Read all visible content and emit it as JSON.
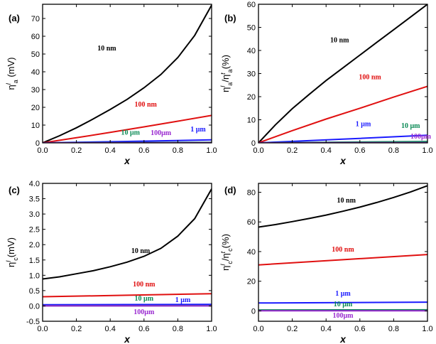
{
  "chart_data": [
    {
      "type": "line",
      "panel_label": "(a)",
      "ylabel_html": "η<tspan baseline-shift=\"super\" font-size=\"9\" font-style=\"italic\">l</tspan><tspan baseline-shift=\"sub\" font-size=\"9\">a</tspan> (mV)",
      "xlabel": "x",
      "xlim": [
        0,
        1.0
      ],
      "ylim": [
        0,
        78
      ],
      "xticks": [
        0.0,
        0.2,
        0.4,
        0.6,
        0.8,
        1.0
      ],
      "yticks": [
        0,
        10,
        20,
        30,
        40,
        50,
        60,
        70
      ],
      "series": [
        {
          "name": "10 nm",
          "color": "#000000",
          "x": [
            0,
            0.1,
            0.2,
            0.3,
            0.4,
            0.5,
            0.6,
            0.7,
            0.8,
            0.9,
            1.0
          ],
          "y": [
            0,
            4,
            8.5,
            13.5,
            18.8,
            24.5,
            31,
            38.5,
            48,
            60.5,
            77.5
          ]
        },
        {
          "name": "100 nm",
          "color": "#e01010",
          "x": [
            0,
            0.2,
            0.4,
            0.6,
            0.8,
            1.0
          ],
          "y": [
            0,
            2.9,
            5.9,
            9,
            12.2,
            15.5
          ]
        },
        {
          "name": "1 μm",
          "color": "#1a1aff",
          "x": [
            0,
            0.5,
            1.0
          ],
          "y": [
            0,
            0.8,
            1.7
          ]
        },
        {
          "name": "10 μm",
          "color": "#0a8a55",
          "x": [
            0,
            0.5,
            1.0
          ],
          "y": [
            0,
            0.15,
            0.3
          ]
        },
        {
          "name": "100μm",
          "color": "#9a2ad0",
          "x": [
            0,
            0.5,
            1.0
          ],
          "y": [
            0,
            0.03,
            0.06
          ]
        }
      ],
      "annotations": [
        {
          "text": "10 nm",
          "color": "#000000",
          "x": 0.38,
          "y": 52
        },
        {
          "text": "100 nm",
          "color": "#e01010",
          "x": 0.61,
          "y": 20.5
        },
        {
          "text": "10 μm",
          "color": "#0a8a55",
          "x": 0.52,
          "y": 4.7
        },
        {
          "text": "100μm",
          "color": "#9a2ad0",
          "x": 0.7,
          "y": 4.5
        },
        {
          "text": "1 μm",
          "color": "#1a1aff",
          "x": 0.92,
          "y": 6.4
        }
      ]
    },
    {
      "type": "line",
      "panel_label": "(b)",
      "ylabel_html": "η<tspan baseline-shift=\"super\" font-size=\"9\" font-style=\"italic\">l</tspan><tspan baseline-shift=\"sub\" font-size=\"9\">a</tspan>/η<tspan baseline-shift=\"super\" font-size=\"9\" font-style=\"italic\">t</tspan><tspan baseline-shift=\"sub\" font-size=\"9\">a</tspan>(%)",
      "xlabel": "x",
      "xlim": [
        0,
        1.0
      ],
      "ylim": [
        0,
        60
      ],
      "xticks": [
        0.0,
        0.2,
        0.4,
        0.6,
        0.8,
        1.0
      ],
      "yticks": [
        0,
        10,
        20,
        30,
        40,
        50,
        60
      ],
      "series": [
        {
          "name": "10 nm",
          "color": "#000000",
          "x": [
            0,
            0.1,
            0.2,
            0.3,
            0.4,
            0.5,
            0.6,
            0.7,
            0.8,
            0.9,
            1.0
          ],
          "y": [
            0,
            7.8,
            14.8,
            21,
            27,
            32.5,
            38,
            43.5,
            49,
            54.5,
            60
          ]
        },
        {
          "name": "100 nm",
          "color": "#e01010",
          "x": [
            0,
            0.2,
            0.4,
            0.6,
            0.8,
            1.0
          ],
          "y": [
            0,
            5.3,
            10.3,
            15,
            19.8,
            24.5
          ]
        },
        {
          "name": "1 μm",
          "color": "#1a1aff",
          "x": [
            0,
            0.5,
            1.0
          ],
          "y": [
            0,
            1.6,
            3.3
          ]
        },
        {
          "name": "10 μm",
          "color": "#0a8a55",
          "x": [
            0,
            0.5,
            1.0
          ],
          "y": [
            0,
            0.3,
            0.6
          ]
        },
        {
          "name": "100μm",
          "color": "#9a2ad0",
          "x": [
            0,
            0.5,
            1.0
          ],
          "y": [
            0,
            0.05,
            0.1
          ]
        }
      ],
      "annotations": [
        {
          "text": "10 nm",
          "color": "#000000",
          "x": 0.48,
          "y": 43.5
        },
        {
          "text": "100 nm",
          "color": "#e01010",
          "x": 0.66,
          "y": 27.5
        },
        {
          "text": "1 μm",
          "color": "#1a1aff",
          "x": 0.62,
          "y": 7.2
        },
        {
          "text": "10 μm",
          "color": "#0a8a55",
          "x": 0.9,
          "y": 6.5
        },
        {
          "text": "100μm",
          "color": "#9a2ad0",
          "x": 0.96,
          "y": 1.9
        }
      ]
    },
    {
      "type": "line",
      "panel_label": "(c)",
      "ylabel_html": "η<tspan baseline-shift=\"super\" font-size=\"9\" font-style=\"italic\">l</tspan><tspan baseline-shift=\"sub\" font-size=\"9\">c</tspan>(mV)",
      "xlabel": "x",
      "xlim": [
        0,
        1.0
      ],
      "ylim": [
        -0.5,
        4.0
      ],
      "xticks": [
        0.0,
        0.2,
        0.4,
        0.6,
        0.8,
        1.0
      ],
      "yticks": [
        -0.5,
        0.0,
        0.5,
        1.0,
        1.5,
        2.0,
        2.5,
        3.0,
        3.5,
        4.0
      ],
      "series": [
        {
          "name": "10 nm",
          "color": "#000000",
          "x": [
            0,
            0.1,
            0.2,
            0.3,
            0.4,
            0.5,
            0.6,
            0.7,
            0.8,
            0.9,
            1.0
          ],
          "y": [
            0.88,
            0.95,
            1.05,
            1.15,
            1.28,
            1.43,
            1.62,
            1.88,
            2.28,
            2.85,
            3.82
          ]
        },
        {
          "name": "100 nm",
          "color": "#e01010",
          "x": [
            0,
            0.5,
            1.0
          ],
          "y": [
            0.3,
            0.35,
            0.4
          ]
        },
        {
          "name": "1 μm",
          "color": "#1a1aff",
          "x": [
            0,
            0.5,
            1.0
          ],
          "y": [
            0.04,
            0.045,
            0.05
          ]
        },
        {
          "name": "10 μm",
          "color": "#0a8a55",
          "x": [
            0,
            0.5,
            1.0
          ],
          "y": [
            0.005,
            0.006,
            0.007
          ]
        },
        {
          "name": "100μm",
          "color": "#9a2ad0",
          "x": [
            0,
            0.5,
            1.0
          ],
          "y": [
            0.0,
            0.0,
            0.0
          ]
        }
      ],
      "annotations": [
        {
          "text": "10 nm",
          "color": "#000000",
          "x": 0.58,
          "y": 1.73
        },
        {
          "text": "100 nm",
          "color": "#e01010",
          "x": 0.6,
          "y": 0.64
        },
        {
          "text": "10 μm",
          "color": "#0a8a55",
          "x": 0.6,
          "y": 0.17
        },
        {
          "text": "1 μm",
          "color": "#1a1aff",
          "x": 0.83,
          "y": 0.13
        },
        {
          "text": "100μm",
          "color": "#9a2ad0",
          "x": 0.6,
          "y": -0.27
        }
      ]
    },
    {
      "type": "line",
      "panel_label": "(d)",
      "ylabel_html": "η<tspan baseline-shift=\"super\" font-size=\"9\" font-style=\"italic\">l</tspan><tspan baseline-shift=\"sub\" font-size=\"9\">c</tspan>/η<tspan baseline-shift=\"super\" font-size=\"9\" font-style=\"italic\">t</tspan><tspan baseline-shift=\"sub\" font-size=\"9\">c</tspan>(%)",
      "xlabel": "x",
      "xlim": [
        0,
        1.0
      ],
      "ylim": [
        -7,
        86
      ],
      "xticks": [
        0.0,
        0.2,
        0.4,
        0.6,
        0.8,
        1.0
      ],
      "yticks": [
        0,
        20,
        40,
        60,
        80
      ],
      "series": [
        {
          "name": "10 nm",
          "color": "#000000",
          "x": [
            0,
            0.1,
            0.2,
            0.3,
            0.4,
            0.5,
            0.6,
            0.7,
            0.8,
            0.9,
            1.0
          ],
          "y": [
            56.5,
            58.2,
            60.2,
            62.3,
            64.6,
            67.2,
            70,
            73.1,
            76.5,
            80.2,
            84.4
          ]
        },
        {
          "name": "100 nm",
          "color": "#e01010",
          "x": [
            0,
            0.5,
            1.0
          ],
          "y": [
            31,
            34.5,
            38
          ]
        },
        {
          "name": "1 μm",
          "color": "#1a1aff",
          "x": [
            0,
            0.5,
            1.0
          ],
          "y": [
            5.3,
            5.6,
            5.9
          ]
        },
        {
          "name": "10 μm",
          "color": "#0a8a55",
          "x": [
            0,
            0.5,
            1.0
          ],
          "y": [
            0.6,
            0.65,
            0.7
          ]
        },
        {
          "name": "100μm",
          "color": "#9a2ad0",
          "x": [
            0,
            0.5,
            1.0
          ],
          "y": [
            0.05,
            0.05,
            0.05
          ]
        }
      ],
      "annotations": [
        {
          "text": "10 nm",
          "color": "#000000",
          "x": 0.52,
          "y": 73
        },
        {
          "text": "100 nm",
          "color": "#e01010",
          "x": 0.5,
          "y": 40
        },
        {
          "text": "1 μm",
          "color": "#1a1aff",
          "x": 0.5,
          "y": 10.3
        },
        {
          "text": "10 μm",
          "color": "#0a8a55",
          "x": 0.5,
          "y": 3
        },
        {
          "text": "100μm",
          "color": "#9a2ad0",
          "x": 0.5,
          "y": -4.5
        }
      ]
    }
  ]
}
